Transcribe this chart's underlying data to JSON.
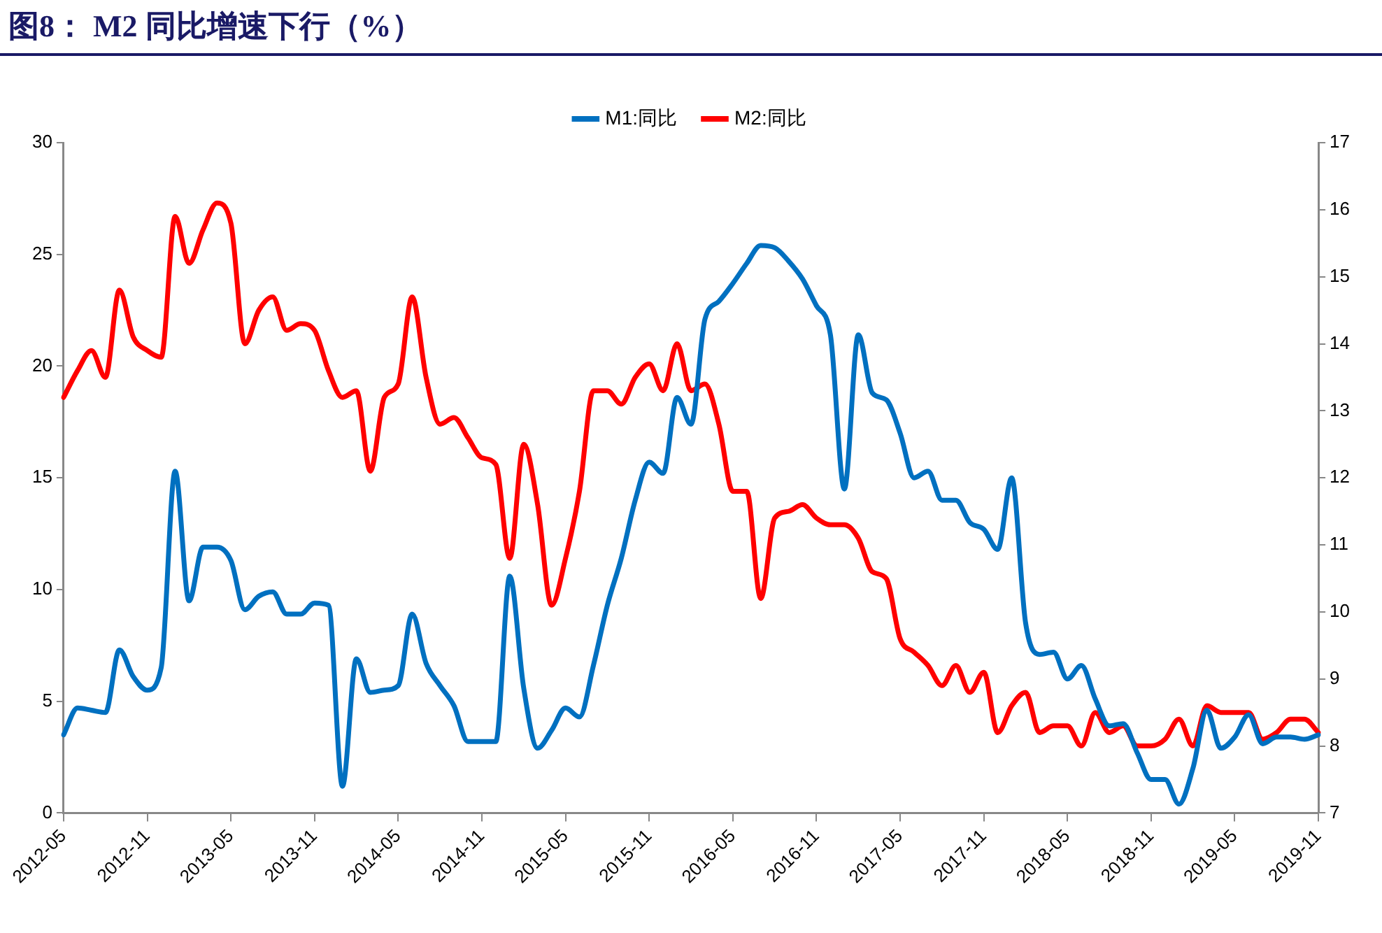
{
  "chart_data": {
    "type": "line",
    "title": "图8： M2 同比增速下行（%）",
    "categories": [
      "2012-05",
      null,
      null,
      null,
      null,
      null,
      "2012-11",
      null,
      null,
      null,
      null,
      null,
      "2013-05",
      null,
      null,
      null,
      null,
      null,
      "2013-11",
      null,
      null,
      null,
      null,
      null,
      "2014-05",
      null,
      null,
      null,
      null,
      null,
      "2014-11",
      null,
      null,
      null,
      null,
      null,
      "2015-05",
      null,
      null,
      null,
      null,
      null,
      "2015-11",
      null,
      null,
      null,
      null,
      null,
      "2016-05",
      null,
      null,
      null,
      null,
      null,
      "2016-11",
      null,
      null,
      null,
      null,
      null,
      "2017-05",
      null,
      null,
      null,
      null,
      null,
      "2017-11",
      null,
      null,
      null,
      null,
      null,
      "2018-05",
      null,
      null,
      null,
      null,
      null,
      "2018-11",
      null,
      null,
      null,
      null,
      null,
      "2019-05",
      null,
      null,
      null,
      null,
      null,
      "2019-11"
    ],
    "series": [
      {
        "name": "M1:同比",
        "color": "#0070c0",
        "values": [
          3.5,
          4.7,
          4.6,
          4.5,
          7.3,
          6.1,
          5.5,
          6.5,
          15.3,
          9.5,
          11.9,
          11.9,
          11.3,
          9.1,
          9.7,
          9.9,
          8.9,
          8.9,
          9.4,
          9.3,
          1.2,
          6.9,
          5.4,
          5.5,
          5.7,
          8.9,
          6.7,
          5.7,
          4.8,
          3.2,
          3.2,
          3.2,
          10.6,
          5.6,
          2.9,
          3.7,
          4.7,
          4.3,
          6.6,
          9.3,
          11.4,
          14.0,
          15.7,
          15.2,
          18.6,
          17.4,
          22.1,
          22.9,
          23.7,
          24.6,
          25.4,
          25.3,
          24.7,
          23.9,
          22.7,
          21.4,
          14.5,
          21.4,
          18.8,
          18.5,
          17.0,
          15.0,
          15.3,
          14.0,
          14.0,
          13.0,
          12.7,
          11.8,
          15.0,
          8.5,
          7.1,
          7.2,
          6.0,
          6.6,
          5.1,
          3.9,
          4.0,
          2.7,
          1.5,
          1.5,
          0.4,
          2.0,
          4.6,
          2.9,
          3.4,
          4.4,
          3.1,
          3.4,
          3.4,
          3.3,
          3.5
        ]
      },
      {
        "name": "M2:同比",
        "color": "#ff0000",
        "axis": "y2",
        "values": [
          13.2,
          13.6,
          13.9,
          13.5,
          14.8,
          14.1,
          13.9,
          13.8,
          15.9,
          15.2,
          15.7,
          16.1,
          15.8,
          14.0,
          14.5,
          14.7,
          14.2,
          14.3,
          14.2,
          13.6,
          13.2,
          13.3,
          12.1,
          13.2,
          13.4,
          14.7,
          13.5,
          12.8,
          12.9,
          12.6,
          12.3,
          12.2,
          10.8,
          12.5,
          11.6,
          10.1,
          10.8,
          11.8,
          13.3,
          13.3,
          13.1,
          13.5,
          13.7,
          13.3,
          14.0,
          13.3,
          13.4,
          12.8,
          11.8,
          11.8,
          10.2,
          11.4,
          11.5,
          11.6,
          11.4,
          11.3,
          11.3,
          11.1,
          10.6,
          10.5,
          9.6,
          9.4,
          9.2,
          8.9,
          9.2,
          8.8,
          9.1,
          8.2,
          8.6,
          8.8,
          8.2,
          8.3,
          8.3,
          8.0,
          8.5,
          8.2,
          8.3,
          8.0,
          8.0,
          8.1,
          8.4,
          8.0,
          8.6,
          8.5,
          8.5,
          8.5,
          8.1,
          8.2,
          8.4,
          8.4,
          8.2
        ]
      }
    ],
    "ylim": [
      0,
      30
    ],
    "yticks": [
      0,
      5,
      10,
      15,
      20,
      25,
      30
    ],
    "y2lim": [
      7,
      17
    ],
    "y2ticks": [
      7,
      8,
      9,
      10,
      11,
      12,
      13,
      14,
      15,
      16,
      17
    ],
    "grid": false,
    "legend": "top",
    "marker": "none",
    "line_style": "solid"
  }
}
